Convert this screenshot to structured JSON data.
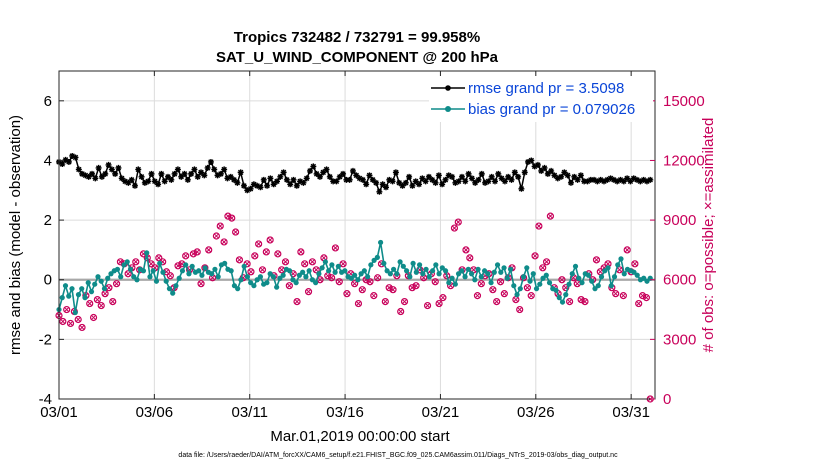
{
  "chart_data": {
    "type": "line",
    "title_line1": "Tropics 732482 / 732791 = 99.958%",
    "title_line2": "SAT_U_WIND_COMPONENT @ 200 hPa",
    "xlabel": "Mar.01,2019 00:00:00 start",
    "ylabel_left": "rmse and bias (model - observation)",
    "ylabel_right": "# of obs: o=possible; ×=assimilated",
    "xlim": [
      0,
      31.25
    ],
    "ylim_left": [
      -4,
      7
    ],
    "ylim_right": [
      0,
      16500
    ],
    "x_ticks": [
      {
        "value": 0,
        "label": "03/01"
      },
      {
        "value": 5,
        "label": "03/06"
      },
      {
        "value": 10,
        "label": "03/11"
      },
      {
        "value": 15,
        "label": "03/16"
      },
      {
        "value": 20,
        "label": "03/21"
      },
      {
        "value": 25,
        "label": "03/26"
      },
      {
        "value": 30,
        "label": "03/31"
      }
    ],
    "y_ticks_left": [
      {
        "value": -4,
        "label": "-4"
      },
      {
        "value": -2,
        "label": "-2"
      },
      {
        "value": 0,
        "label": "0"
      },
      {
        "value": 2,
        "label": "2"
      },
      {
        "value": 4,
        "label": "4"
      },
      {
        "value": 6,
        "label": "6"
      }
    ],
    "y_ticks_right": [
      {
        "value": 0,
        "label": "0"
      },
      {
        "value": 3000,
        "label": "3000"
      },
      {
        "value": 6000,
        "label": "6000"
      },
      {
        "value": 9000,
        "label": "9000"
      },
      {
        "value": 12000,
        "label": "12000"
      },
      {
        "value": 15000,
        "label": "15000"
      }
    ],
    "grid": true,
    "legend_position": "top-right",
    "series": [
      {
        "name": "rmse",
        "legend_label": "rmse grand pr = 3.5098",
        "color": "#000000",
        "marker": "star",
        "values": [
          3.95,
          3.88,
          4.02,
          3.95,
          4.15,
          4.1,
          3.7,
          3.55,
          3.5,
          3.45,
          3.55,
          3.4,
          3.75,
          3.45,
          3.55,
          3.85,
          3.7,
          3.55,
          3.75,
          3.4,
          3.3,
          3.25,
          3.35,
          3.15,
          3.7,
          3.45,
          3.25,
          3.3,
          3.55,
          3.3,
          3.2,
          3.55,
          3.3,
          3.45,
          3.35,
          3.55,
          3.7,
          3.45,
          3.55,
          3.35,
          3.55,
          3.7,
          3.45,
          3.6,
          3.5,
          3.75,
          3.95,
          3.7,
          3.5,
          3.55,
          3.7,
          3.4,
          3.45,
          3.35,
          3.25,
          3.6,
          3.15,
          3.0,
          3.05,
          3.2,
          3.15,
          3.1,
          3.35,
          3.15,
          3.4,
          3.2,
          3.3,
          3.45,
          3.6,
          3.35,
          3.2,
          3.35,
          3.15,
          3.3,
          3.25,
          3.4,
          3.65,
          3.8,
          3.55,
          3.45,
          3.6,
          3.7,
          3.45,
          3.3,
          3.3,
          3.45,
          3.55,
          3.35,
          3.35,
          3.65,
          3.5,
          3.4,
          3.35,
          3.2,
          3.5,
          3.35,
          3.25,
          2.95,
          3.2,
          3.1,
          3.35,
          3.3,
          3.6,
          3.25,
          3.15,
          3.25,
          3.45,
          3.15,
          3.3,
          3.2,
          3.4,
          3.3,
          3.45,
          3.35,
          3.25,
          3.5,
          3.2,
          3.35,
          3.5,
          3.45,
          3.25,
          3.3,
          3.45,
          3.3,
          3.55,
          3.4,
          3.25,
          3.35,
          3.55,
          3.25,
          3.3,
          3.45,
          3.3,
          3.55,
          3.4,
          3.3,
          3.45,
          3.35,
          3.6,
          3.45,
          3.05,
          3.6,
          3.95,
          4.0,
          3.8,
          3.85,
          3.65,
          3.75,
          3.55,
          3.65,
          3.5,
          3.4,
          3.45,
          3.6,
          3.5,
          3.25,
          3.45,
          3.35,
          3.5,
          3.3,
          3.3,
          3.35,
          3.35,
          3.3,
          3.35,
          3.3,
          3.35,
          3.4,
          3.35,
          3.3,
          3.35,
          3.3,
          3.4,
          3.3,
          3.4,
          3.35,
          3.3,
          3.35,
          3.3,
          3.35
        ]
      },
      {
        "name": "bias",
        "legend_label": "bias grand pr = 0.079026",
        "color": "#0f8c8a",
        "marker": "circle",
        "values": [
          -1.0,
          -0.6,
          -0.2,
          -0.55,
          -0.3,
          -1.1,
          -0.5,
          -0.3,
          -0.6,
          -0.1,
          -0.4,
          -0.15,
          0.1,
          -0.05,
          -0.3,
          0.05,
          0.2,
          0.3,
          0.35,
          0.1,
          0.5,
          0.6,
          0.35,
          0.1,
          0.0,
          0.35,
          0.3,
          0.9,
          0.1,
          0.3,
          -0.05,
          0.55,
          0.25,
          -0.05,
          -0.3,
          -0.45,
          -0.2,
          0.05,
          0.3,
          0.5,
          0.2,
          0.45,
          0.25,
          0.3,
          0.15,
          0.4,
          0.25,
          0.2,
          0.35,
          0.1,
          0.5,
          0.55,
          0.35,
          0.3,
          -0.2,
          -0.3,
          0.0,
          0.45,
          0.1,
          -0.1,
          -0.2,
          0.0,
          0.1,
          -0.15,
          -0.1,
          0.2,
          0.1,
          -0.25,
          0.05,
          0.15,
          0.35,
          0.3,
          0.0,
          -0.1,
          0.15,
          0.25,
          0.1,
          0.3,
          0.0,
          -0.1,
          0.2,
          0.4,
          0.6,
          0.3,
          0.5,
          0.25,
          0.45,
          0.25,
          0.3,
          0.1,
          0.05,
          0.15,
          0.0,
          0.2,
          0.3,
          0.1,
          0.5,
          0.65,
          0.75,
          1.25,
          0.55,
          0.3,
          0.2,
          0.35,
          0.2,
          0.6,
          0.45,
          0.3,
          0.1,
          0.55,
          0.25,
          0.5,
          0.2,
          0.35,
          0.1,
          0.3,
          0.5,
          0.2,
          0.4,
          0.3,
          -0.1,
          0.05,
          -0.15,
          0.2,
          0.3,
          0.1,
          0.35,
          0.2,
          0.0,
          0.35,
          0.1,
          0.3,
          0.2,
          -0.1,
          0.25,
          0.5,
          0.25,
          0.4,
          0.05,
          0.35,
          -0.2,
          -0.5,
          -0.3,
          0.1,
          0.4,
          -0.05,
          0.2,
          -0.3,
          -0.15,
          0.05,
          0.15,
          -0.1,
          -0.3,
          -0.35,
          -0.6,
          -0.75,
          -0.5,
          -0.15,
          0.2,
          0.45,
          0.05,
          -0.1,
          0.2,
          0.15,
          -0.05,
          -0.3,
          -0.2,
          0.1,
          0.3,
          0.4,
          -0.2,
          0.1,
          0.5,
          0.7,
          0.2,
          0.35,
          0.3,
          0.25,
          0.15,
          0.0,
          0.05,
          -0.05,
          0.05
        ]
      },
      {
        "name": "obs_possible",
        "axis": "right",
        "color": "#c8005a",
        "marker": "o",
        "values": [
          4200,
          3900,
          4500,
          3800,
          4400,
          4000,
          3600,
          5200,
          4800,
          4100,
          5000,
          4700,
          5300,
          5600,
          4900,
          5800,
          6900,
          6800,
          6300,
          6600,
          6900,
          6500,
          7300,
          7100,
          6800,
          6600,
          7100,
          6900,
          6400,
          6200,
          5600,
          6700,
          6800,
          7200,
          6500,
          7300,
          7400,
          5800,
          6600,
          7500,
          6100,
          8200,
          8700,
          7900,
          9200,
          9100,
          8400,
          7000,
          6100,
          6800,
          6400,
          7200,
          7800,
          6500,
          7400,
          8000,
          6200,
          7300,
          6500,
          6900,
          5700,
          6300,
          4900,
          7400,
          6800,
          5400,
          6900,
          6500,
          6000,
          7100,
          6200,
          6100,
          7600,
          5900,
          6800,
          5300,
          6300,
          5800,
          4800,
          5500,
          6000,
          5900,
          5200,
          6100,
          6800,
          4900,
          5600,
          5500,
          6200,
          4400,
          4900,
          6200,
          5600,
          5700,
          6500,
          6100,
          4700,
          6300,
          5900,
          4800,
          5100,
          6200,
          5700,
          8600,
          8900,
          6500,
          7500,
          7100,
          6500,
          5200,
          5800,
          6200,
          6300,
          5500,
          4900,
          5900,
          5300,
          6100,
          6600,
          5000,
          4500,
          6100,
          5600,
          5200,
          7200,
          8700,
          6600,
          6900,
          9200,
          5600,
          5300,
          6000,
          5600,
          4900,
          6100,
          5800,
          5000,
          4900,
          6300,
          6000,
          7000,
          6400,
          6600,
          6800,
          5600,
          5300,
          6500,
          5200,
          7500,
          6400,
          6800,
          4800,
          5200,
          5100,
          0
        ]
      },
      {
        "name": "obs_assimilated",
        "axis": "right",
        "color": "#c8005a",
        "marker": "x",
        "values": [
          4200,
          3900,
          4500,
          3800,
          4400,
          4000,
          3600,
          5200,
          4800,
          4100,
          5000,
          4700,
          5300,
          5600,
          4900,
          5800,
          6900,
          6800,
          6300,
          6600,
          6900,
          6500,
          7300,
          7100,
          6800,
          6600,
          7100,
          6900,
          6400,
          6200,
          5600,
          6700,
          6800,
          7200,
          6500,
          7300,
          7400,
          5800,
          6600,
          7500,
          6100,
          8200,
          8700,
          7900,
          9200,
          9100,
          8400,
          7000,
          6100,
          6800,
          6400,
          7200,
          7800,
          6500,
          7400,
          8000,
          6200,
          7300,
          6500,
          6900,
          5700,
          6300,
          4900,
          7400,
          6800,
          5400,
          6900,
          6500,
          6000,
          7100,
          6200,
          6100,
          7600,
          5900,
          6800,
          5300,
          6300,
          5800,
          4800,
          5500,
          6000,
          5900,
          5200,
          6100,
          6800,
          4900,
          5600,
          5500,
          6200,
          4400,
          4900,
          6200,
          5600,
          5700,
          6500,
          6100,
          4700,
          6300,
          5900,
          4800,
          5100,
          6200,
          5700,
          8600,
          8900,
          6500,
          7500,
          7100,
          6500,
          5200,
          5800,
          6200,
          6300,
          5500,
          4900,
          5900,
          5300,
          6100,
          6600,
          5000,
          4500,
          6100,
          5600,
          5200,
          7200,
          8700,
          6600,
          6900,
          9200,
          5600,
          5300,
          6000,
          5600,
          4900,
          6100,
          5800,
          5000,
          4900,
          6300,
          6000,
          7000,
          6400,
          6600,
          6800,
          5600,
          5300,
          6500,
          5200,
          7500,
          6400,
          6800,
          4800,
          5200,
          5100,
          0
        ]
      }
    ],
    "footer": "data file: /Users/raeder/DAI/ATM_forcXX/CAM6_setup/f.e21.FHIST_BGC.f09_025.CAM6assim.011/Diags_NTrS_2019-03/obs_diag_output.nc"
  }
}
